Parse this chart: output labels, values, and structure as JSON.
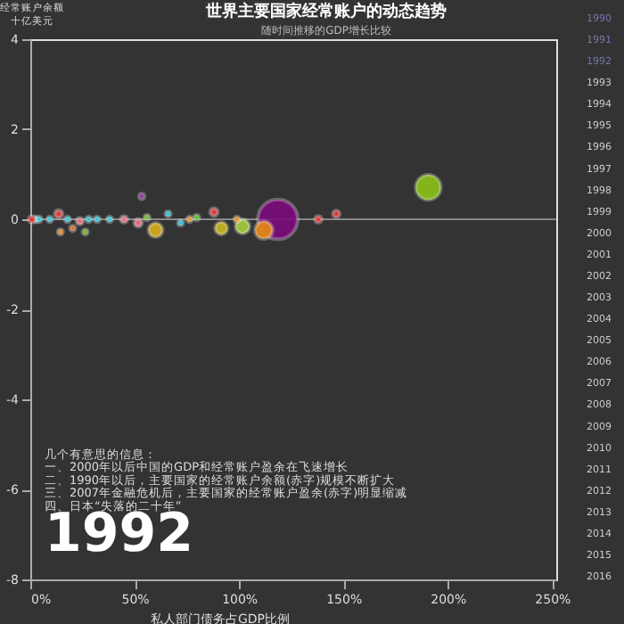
{
  "chart_data": {
    "type": "bubble",
    "title": "世界主要国家经常账户的动态趋势",
    "subtitle": "随时间推移的GDP增长比较",
    "xlabel": "私人部门债务占GDP比例",
    "ylabel": "经常账户余额十亿美元",
    "x": [
      118.6,
      190.7,
      111.9,
      60,
      53.4,
      101.7,
      91.5,
      138,
      146.6,
      88,
      14.4,
      20.3,
      26.3,
      2.5,
      4.2,
      9.3,
      17.8,
      28,
      32,
      38,
      0.8,
      13.6,
      23.7,
      44.9,
      51.7,
      55.9,
      66,
      72,
      76.3,
      79.7,
      99
    ],
    "values": [
      0,
      0.71,
      -0.24,
      -0.24,
      0.51,
      -0.16,
      -0.2,
      0,
      0.12,
      0.16,
      -0.28,
      -0.2,
      -0.28,
      0,
      0,
      0,
      0,
      0,
      0,
      0,
      0,
      0.12,
      -0.04,
      0,
      -0.08,
      0.04,
      0.12,
      -0.08,
      0,
      0.04,
      0
    ],
    "sizes": [
      1,
      0.4,
      0.2,
      0.13,
      0.02,
      0.13,
      0.1,
      0.03,
      0.03,
      0.04,
      0.02,
      0.02,
      0.02,
      0.02,
      0.02,
      0.02,
      0.02,
      0.02,
      0.02,
      0.02,
      0.03,
      0.04,
      0.03,
      0.03,
      0.04,
      0.02,
      0.02,
      0.02,
      0.02,
      0.02,
      0.02
    ],
    "colors": [
      "#7a0a7a",
      "#8cc21a",
      "#e88a1a",
      "#d8b020",
      "#8a1a9a",
      "#a8d040",
      "#c8b820",
      "#e83030",
      "#e83030",
      "#e84040",
      "#e88a1a",
      "#e8601a",
      "#70b020",
      "#20c8d8",
      "#20c8d8",
      "#20c8d8",
      "#20c8d8",
      "#20c8d8",
      "#20c8d8",
      "#20c8d8",
      "#e82020",
      "#e84040",
      "#e87080",
      "#e87080",
      "#e87080",
      "#70c020",
      "#20c8d8",
      "#20c8d8",
      "#e88a1a",
      "#50c020",
      "#e88a1a"
    ],
    "xlim": [
      0,
      252
    ],
    "xticks": [
      {
        "value": 0,
        "label": "0%"
      },
      {
        "value": 50,
        "label": "50%"
      },
      {
        "value": 100,
        "label": "100%"
      },
      {
        "value": 150,
        "label": "150%"
      },
      {
        "value": 200,
        "label": "200%"
      },
      {
        "value": 250,
        "label": "250%"
      }
    ],
    "ylim": [
      -8,
      4
    ],
    "yticks": [
      -8,
      -6,
      -4,
      -2,
      0,
      2,
      4
    ],
    "ref_lines": [
      {
        "axis": "y",
        "value": 0,
        "color": "#888888"
      }
    ],
    "grid": false,
    "legend": false,
    "annotations": [
      "几个有意思的信息：",
      "一、2000年以后中国的GDP和经常账户盈余在飞速增长",
      "二、1990年以后，主要国家的经常账户余额(赤字)规模不断扩大",
      "三、2007年金融危机后，主要国家的经常账户盈余(赤字)明显缩减",
      "四、日本“失落的二十年”",
      "1992",
      "1990",
      "1991",
      "1992",
      "1993",
      "1994",
      "1995",
      "1996",
      "1997",
      "1998",
      "1999",
      "2000",
      "2001",
      "2002",
      "2003",
      "2004",
      "2005",
      "2006",
      "2007",
      "2008",
      "2009",
      "2010",
      "2011",
      "2012",
      "2013",
      "2014",
      "2015",
      "2016"
    ]
  }
}
